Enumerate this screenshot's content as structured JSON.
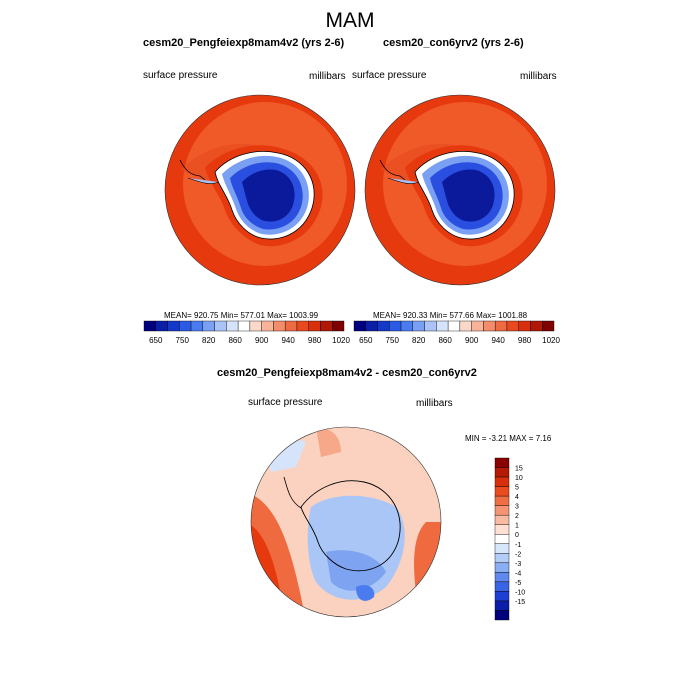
{
  "figure": {
    "title": "MAM"
  },
  "panels": [
    {
      "title": "cesm20_Pengfeiexp8mam4v2 (yrs 2-6)",
      "left_label": "surface pressure",
      "right_label": "millibars",
      "stats": "MEAN= 920.75  Min= 577.01  Max= 1003.99"
    },
    {
      "title": "cesm20_con6yrv2 (yrs 2-6)",
      "left_label": "surface pressure",
      "right_label": "millibars",
      "stats": "MEAN= 920.33  Min= 577.66  Max= 1001.88"
    }
  ],
  "colorbar_top": {
    "labels": [
      "650",
      "750",
      "820",
      "860",
      "900",
      "940",
      "980",
      "1020"
    ],
    "colors": [
      "#00007f",
      "#0a1ea8",
      "#1438c8",
      "#2a5ae6",
      "#4a7cf0",
      "#7aa0f4",
      "#aac4f8",
      "#d6e4fb",
      "#ffffff",
      "#fbd8c8",
      "#f7b49a",
      "#f28c6a",
      "#ee6a42",
      "#e84a1e",
      "#d8300c",
      "#b01806",
      "#7f0000"
    ]
  },
  "diff_panel": {
    "title": "cesm20_Pengfeiexp8mam4v2 - cesm20_con6yrv2",
    "left_label": "surface pressure",
    "right_label": "millibars",
    "stats": "MIN =  -3.21 MAX =   7.16"
  },
  "colorbar_diff": {
    "labels": [
      "15",
      "10",
      "5",
      "4",
      "3",
      "2",
      "1",
      "0",
      "-1",
      "-2",
      "-3",
      "-4",
      "-5",
      "-10",
      "-15"
    ],
    "colors": [
      "#8b0000",
      "#b41a06",
      "#d8300c",
      "#ea4c1e",
      "#f06e44",
      "#f59474",
      "#f9bca2",
      "#fde0d2",
      "#ffffff",
      "#d6e6fb",
      "#b2cdf8",
      "#8aaef3",
      "#6089ee",
      "#3a64e6",
      "#1e40d2",
      "#0a1eaa",
      "#00007f"
    ]
  },
  "map_colors": {
    "ocean_red": "#e63a0e",
    "ocean_ring": "#f05a28",
    "ice_deep": "#0a1a9a",
    "ice_mid": "#2a4ee0",
    "ice_light": "#7aa0f4",
    "diff_pos": "#f06a40",
    "diff_light": "#fbd2bf",
    "diff_neg": "#a9c6f7",
    "diff_neg2": "#7da3f1"
  }
}
